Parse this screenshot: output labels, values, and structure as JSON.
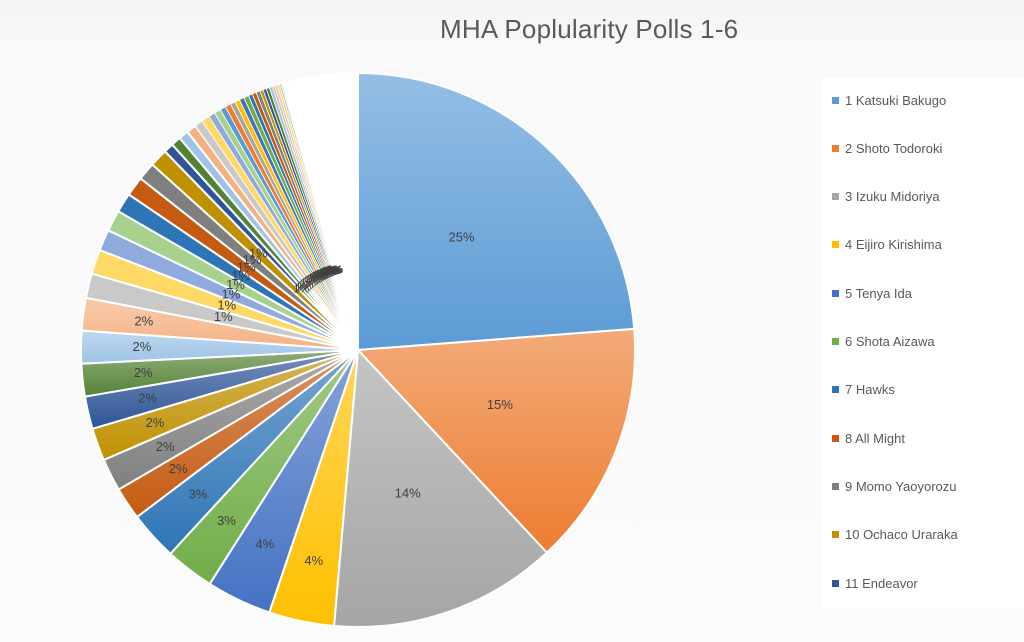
{
  "chart_data": {
    "type": "pie",
    "title": "MHA Poplularity Polls 1-6",
    "legend_position": "right",
    "slices": [
      {
        "label": "1 Katsuki Bakugo",
        "value": 25,
        "color": "#5b9bd5",
        "data_label": "25%"
      },
      {
        "label": "2 Shoto Todoroki",
        "value": 15,
        "color": "#ed7d31",
        "data_label": "15%"
      },
      {
        "label": "3 Izuku Midoriya",
        "value": 14,
        "color": "#a5a5a5",
        "data_label": "14%"
      },
      {
        "label": "4 Eijiro Kirishima",
        "value": 4,
        "color": "#ffc000",
        "data_label": "4%"
      },
      {
        "label": "5 Tenya Ida",
        "value": 4,
        "color": "#4472c4",
        "data_label": "4%"
      },
      {
        "label": "6 Shota Aizawa",
        "value": 3,
        "color": "#70ad47",
        "data_label": "3%"
      },
      {
        "label": "7 Hawks",
        "value": 3,
        "color": "#2e75b6",
        "data_label": "3%"
      },
      {
        "label": "8 All Might",
        "value": 2,
        "color": "#c55a11",
        "data_label": "2%"
      },
      {
        "label": "9 Momo Yaoyorozu",
        "value": 2,
        "color": "#7f7f7f",
        "data_label": "2%"
      },
      {
        "label": "10 Ochaco Uraraka",
        "value": 2,
        "color": "#bf9000",
        "data_label": "2%"
      },
      {
        "label": "11 Endeavor",
        "value": 2,
        "color": "#2f5597",
        "data_label": "2%"
      },
      {
        "label": "",
        "value": 2,
        "color": "#548235",
        "data_label": "2%"
      },
      {
        "label": "",
        "value": 2,
        "color": "#9dc3e6",
        "data_label": "2%"
      },
      {
        "label": "",
        "value": 2,
        "color": "#f4b183",
        "data_label": "2%"
      },
      {
        "label": "",
        "value": 1.5,
        "color": "#c9c9c9",
        "data_label": "1%"
      },
      {
        "label": "",
        "value": 1.5,
        "color": "#ffd966",
        "data_label": "1%"
      },
      {
        "label": "",
        "value": 1.3,
        "color": "#8faadc",
        "data_label": "1%"
      },
      {
        "label": "",
        "value": 1.3,
        "color": "#a9d18e",
        "data_label": "1%"
      },
      {
        "label": "",
        "value": 1.2,
        "color": "#2e75b6",
        "data_label": "1%"
      },
      {
        "label": "",
        "value": 1.2,
        "color": "#c55a11",
        "data_label": "1%"
      },
      {
        "label": "",
        "value": 1.1,
        "color": "#7f7f7f",
        "data_label": "1%"
      },
      {
        "label": "",
        "value": 1.1,
        "color": "#bf9000",
        "data_label": "1%"
      },
      {
        "label": "",
        "value": 0.6,
        "color": "#2f5597",
        "data_label": "1%"
      },
      {
        "label": "",
        "value": 0.6,
        "color": "#548235",
        "data_label": "1%"
      },
      {
        "label": "",
        "value": 0.6,
        "color": "#9dc3e6",
        "data_label": "1%"
      },
      {
        "label": "",
        "value": 0.6,
        "color": "#f4b183",
        "data_label": "1%"
      },
      {
        "label": "",
        "value": 0.5,
        "color": "#c9c9c9",
        "data_label": "0%"
      },
      {
        "label": "",
        "value": 0.5,
        "color": "#ffd966",
        "data_label": "0%"
      },
      {
        "label": "",
        "value": 0.4,
        "color": "#8faadc",
        "data_label": "0%"
      },
      {
        "label": "",
        "value": 0.4,
        "color": "#a9d18e",
        "data_label": "0%"
      },
      {
        "label": "",
        "value": 0.35,
        "color": "#5b9bd5",
        "data_label": "0%"
      },
      {
        "label": "",
        "value": 0.35,
        "color": "#ed7d31",
        "data_label": "0%"
      },
      {
        "label": "",
        "value": 0.3,
        "color": "#a5a5a5",
        "data_label": "0%"
      },
      {
        "label": "",
        "value": 0.3,
        "color": "#ffc000",
        "data_label": "0%"
      },
      {
        "label": "",
        "value": 0.3,
        "color": "#4472c4",
        "data_label": "0%"
      },
      {
        "label": "",
        "value": 0.3,
        "color": "#70ad47",
        "data_label": "0%"
      },
      {
        "label": "",
        "value": 0.25,
        "color": "#2e75b6",
        "data_label": "0%"
      },
      {
        "label": "",
        "value": 0.25,
        "color": "#c55a11",
        "data_label": "0%"
      },
      {
        "label": "",
        "value": 0.25,
        "color": "#7f7f7f",
        "data_label": "0%"
      },
      {
        "label": "",
        "value": 0.2,
        "color": "#bf9000",
        "data_label": "0%"
      },
      {
        "label": "",
        "value": 0.2,
        "color": "#2f5597",
        "data_label": "0%"
      },
      {
        "label": "",
        "value": 0.2,
        "color": "#548235",
        "data_label": "0%"
      },
      {
        "label": "",
        "value": 0.2,
        "color": "#9dc3e6",
        "data_label": "0%"
      },
      {
        "label": "",
        "value": 0.15,
        "color": "#f4b183",
        "data_label": "0%"
      },
      {
        "label": "",
        "value": 0.15,
        "color": "#c9c9c9",
        "data_label": "0%"
      },
      {
        "label": "",
        "value": 0.15,
        "color": "#ffd966",
        "data_label": "0%"
      },
      {
        "label": "",
        "value": 0.1,
        "color": "#8faadc",
        "data_label": "0%"
      },
      {
        "label": "",
        "value": 0.1,
        "color": "#a9d18e",
        "data_label": "0%"
      },
      {
        "label": "",
        "value": 4.6,
        "color": "#ffffff",
        "data_label": ""
      }
    ]
  }
}
